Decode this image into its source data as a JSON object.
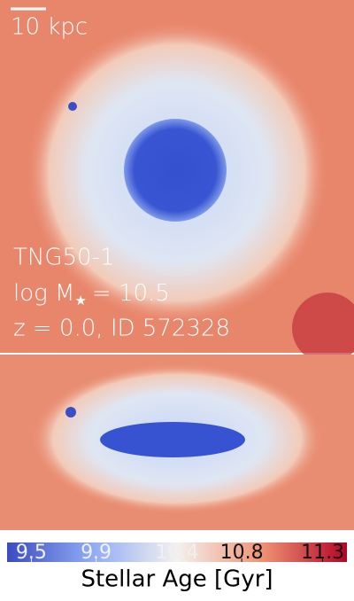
{
  "scale_bar": {
    "label": "10 kpc"
  },
  "info": {
    "simulation": "TNG50-1",
    "mass_prefix": "log M",
    "mass_subscript": "★",
    "mass_value": "= 10.5",
    "snapshot": "z = 0.0, ID 572328"
  },
  "colorbar": {
    "label": "Stellar Age [Gyr]",
    "clim": [
      9.35,
      11.45
    ],
    "ticks": [
      9.5,
      9.9,
      10.4,
      10.8,
      11.3
    ]
  }
}
